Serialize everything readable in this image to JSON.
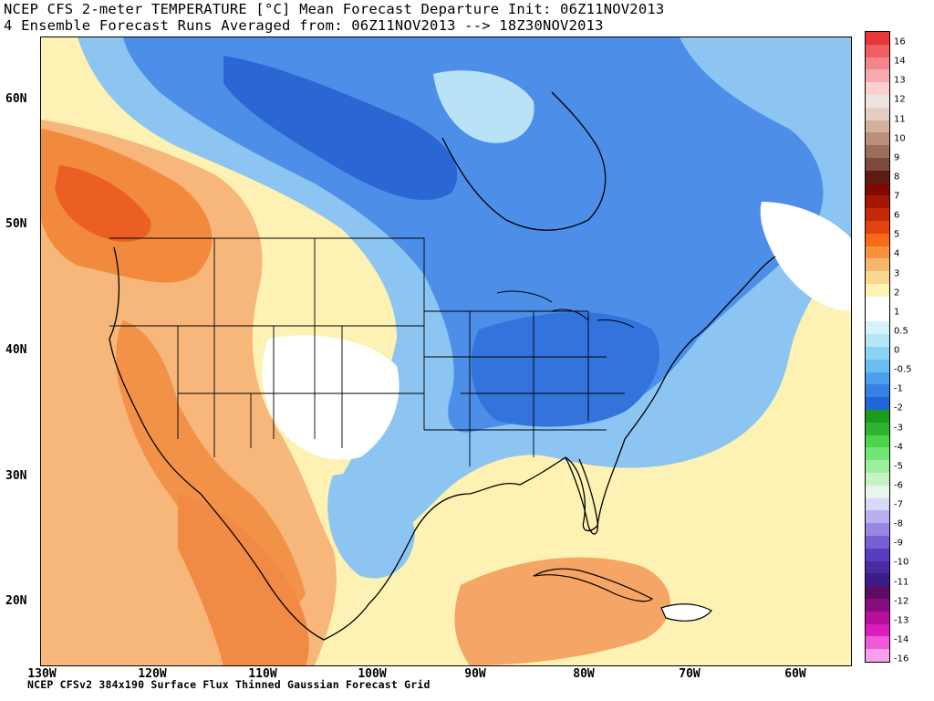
{
  "title": {
    "line1": "NCEP CFS 2-meter TEMPERATURE [°C] Mean Forecast Departure Init: 06Z11NOV2013",
    "line2": "4 Ensemble Forecast Runs Averaged from: 06Z11NOV2013 --> 18Z30NOV2013"
  },
  "footer": "NCEP CFSv2 384x190 Surface Flux Thinned Gaussian Forecast Grid",
  "lat_labels": [
    "60N",
    "50N",
    "40N",
    "30N",
    "20N"
  ],
  "lon_labels": [
    "130W",
    "120W",
    "110W",
    "100W",
    "90W",
    "80W",
    "70W",
    "60W"
  ],
  "colorbar": {
    "labels": [
      "16",
      "14",
      "13",
      "12",
      "11",
      "10",
      "9",
      "8",
      "7",
      "6",
      "5",
      "4",
      "3",
      "2",
      "1",
      "0.5",
      "0",
      "-0.5",
      "-1",
      "-2",
      "-3",
      "-4",
      "-5",
      "-6",
      "-7",
      "-8",
      "-9",
      "-10",
      "-11",
      "-12",
      "-13",
      "-14",
      "-16"
    ],
    "colors": [
      "#e8373b",
      "#ee5f63",
      "#f2868a",
      "#f6aaae",
      "#fbd0d2",
      "#efe3df",
      "#e5cdc3",
      "#d2b09f",
      "#b98e7a",
      "#9d6d5b",
      "#7e4a3d",
      "#5e1d12",
      "#7f0a02",
      "#a31703",
      "#c42a07",
      "#e2420b",
      "#f76a17",
      "#f7923e",
      "#f8b56d",
      "#f8d78f",
      "#fdf3b4",
      "#ffffff",
      "#ffffff",
      "#d6f3fb",
      "#b4e6f7",
      "#8cd3f3",
      "#6bbcf0",
      "#4c9fea",
      "#3582e4",
      "#2066d8",
      "#1c9b1c",
      "#2eb32e",
      "#4bd44b",
      "#72e572",
      "#9bee9b",
      "#c4f4c4",
      "#e8f5e8",
      "#d8d8f8",
      "#b8b0f0",
      "#9888e4",
      "#7860d4",
      "#5a3cc0",
      "#4a2aa0",
      "#3c1c86",
      "#5c0c62",
      "#880c7e",
      "#b8109c",
      "#dc1cbc",
      "#f05ad8",
      "#f8a0ec"
    ],
    "low_label": "-16"
  },
  "layers": {
    "land": "coastline-outlines",
    "borders": "state-and-national-borders"
  }
}
